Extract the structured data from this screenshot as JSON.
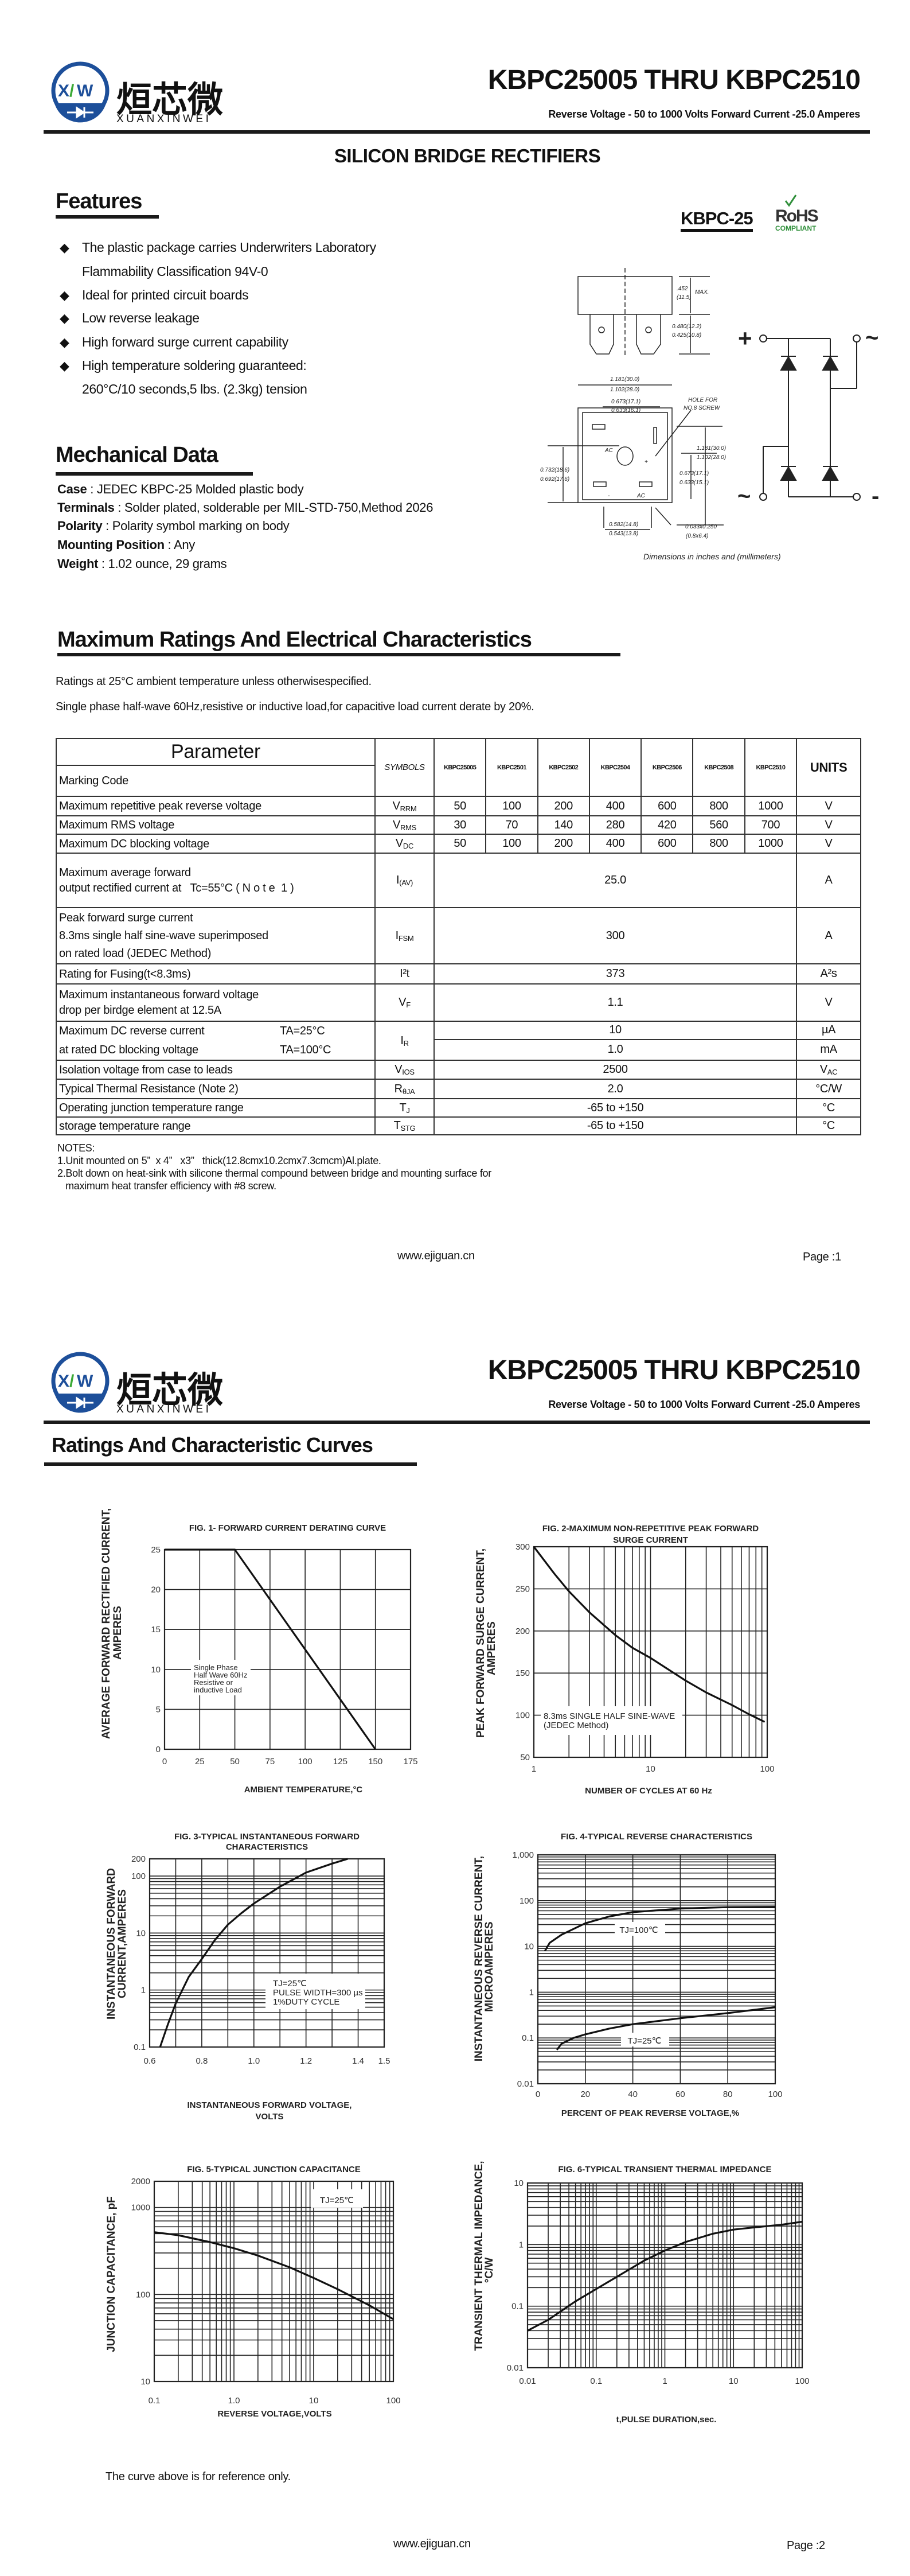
{
  "logo": {
    "mark": "XXW",
    "name_cn": "烜芯微",
    "name_en": "XUANXINWEI",
    "colors": {
      "blue": "#1d4f9a",
      "green": "#3aa935"
    }
  },
  "header": {
    "title": "KBPC25005 THRU KBPC2510",
    "subtitle": "Reverse Voltage - 50 to 1000 Volts Forward Current -25.0 Amperes"
  },
  "page1": {
    "product_type": "SILICON BRIDGE RECTIFIERS",
    "features": {
      "heading": "Features",
      "package_label": "KBPC-25",
      "rohs": {
        "text": "RoHS",
        "sub": "COMPLIANT",
        "color": "#2f8f3a"
      },
      "bullet_icon": "diamond-bullet-icon",
      "items": [
        [
          "The plastic package carries Underwriters Laboratory",
          "Flammability Classification 94V-0"
        ],
        [
          "Ideal for printed circuit boards"
        ],
        [
          "Low reverse leakage"
        ],
        [
          "High forward surge current capability"
        ],
        [
          "High temperature soldering guaranteed:",
          "260°C/10 seconds,5 lbs. (2.3kg) tension"
        ]
      ]
    },
    "package_drawing": {
      "labels": {
        "height_max": ".452",
        "height_max_mm": "(11.5)",
        "max": "MAX.",
        "lead_a": "0.480(12.2)",
        "lead_b": "0.425(10.8)",
        "width_a": "1.181(30.0)",
        "width_b": "1.102(28.0)",
        "inner_a": "0.673(17.1)",
        "inner_b": "0.633(16.1)",
        "hole_1": "HOLE FOR",
        "hole_2": "NO.8 SCREW",
        "side_a": "1.181(30.0)",
        "side_b": "1.102(28.0)",
        "side2_a": "0.673(17.1)",
        "side2_b": "0.633(15.1)",
        "left_a": "0.732(18.6)",
        "left_b": "0.692(17.6)",
        "bottom_a": "0.582(14.8)",
        "bottom_b": "0.543(13.8)",
        "term_a": "0.033x0.250",
        "term_b": "(0.8x6.4)",
        "ac1": "AC",
        "ac2": "AC",
        "plus": "+",
        "minus": "-"
      },
      "caption": "Dimensions in inches and (millimeters)"
    },
    "circuit": {
      "plus": "+",
      "minus": "-",
      "ac": "~"
    },
    "mechanical": {
      "heading": "Mechanical Data",
      "items": [
        {
          "label": "Case",
          "value": " : JEDEC KBPC-25 Molded plastic body"
        },
        {
          "label": "Terminals",
          "value": " : Solder plated, solderable per MIL-STD-750,Method 2026"
        },
        {
          "label": "Polarity",
          "value": " : Polarity symbol  marking on body"
        },
        {
          "label": "Mounting Position",
          "value": " : Any"
        },
        {
          "label": "Weight",
          "value": " : 1.02 ounce, 29 grams"
        }
      ]
    },
    "ratings": {
      "heading": "Maximum Ratings And Electrical Characteristics",
      "note1": "Ratings at 25°C ambient temperature unless otherwisespecified.",
      "note2": "Single phase half-wave 60Hz,resistive or inductive load,for capacitive load current derate by 20%.",
      "table": {
        "param_header": "Parameter",
        "marking_code": "Marking Code",
        "symbols_header": "SYMBOLS",
        "models": [
          "KBPC25005",
          "KBPC2501",
          "KBPC2502",
          "KBPC2504",
          "KBPC2506",
          "KBPC2508",
          "KBPC2510"
        ],
        "units_header": "UNITS",
        "rows": [
          {
            "param": [
              "Maximum repetitive peak reverse voltage"
            ],
            "sym": {
              "m": "V",
              "s": "RRM"
            },
            "values": [
              "50",
              "100",
              "200",
              "400",
              "600",
              "800",
              "1000"
            ],
            "unit": {
              "m": "V",
              "s": ""
            }
          },
          {
            "param": [
              "Maximum RMS voltage"
            ],
            "sym": {
              "m": "V",
              "s": "RMS"
            },
            "values": [
              "30",
              "70",
              "140",
              "280",
              "420",
              "560",
              "700"
            ],
            "unit": {
              "m": "V",
              "s": ""
            }
          },
          {
            "param": [
              "Maximum DC blocking voltage"
            ],
            "sym": {
              "m": "V",
              "s": "DC"
            },
            "values": [
              "50",
              "100",
              "200",
              "400",
              "600",
              "800",
              "1000"
            ],
            "unit": {
              "m": "V",
              "s": ""
            }
          },
          {
            "param": [
              "Maximum average forward",
              "output rectified current at   Tc=55°C ( N o t e  1 )"
            ],
            "sym": {
              "m": "I",
              "s": "(AV)"
            },
            "value": "25.0",
            "unit": {
              "m": "A",
              "s": ""
            }
          },
          {
            "param": [
              "Peak forward surge current",
              "8.3ms single half sine-wave superimposed",
              "on rated load (JEDEC Method)"
            ],
            "sym": {
              "m": "I",
              "s": "FSM"
            },
            "value": "300",
            "unit": {
              "m": "A",
              "s": ""
            }
          },
          {
            "param": [
              "Rating for Fusing(t<8.3ms)"
            ],
            "sym": {
              "m": "I²t",
              "s": ""
            },
            "value": "373",
            "unit": {
              "m": "A²s",
              "s": ""
            }
          },
          {
            "param": [
              "Maximum instantaneous forward voltage",
              "drop per birdge element at 12.5A"
            ],
            "sym": {
              "m": "V",
              "s": "F"
            },
            "value": "1.1",
            "unit": {
              "m": "V",
              "s": ""
            }
          },
          {
            "param": [
              "Maximum DC reverse current",
              "at rated DC blocking voltage"
            ],
            "cond": [
              "TA=25°C",
              "TA=100°C"
            ],
            "sym": {
              "m": "I",
              "s": "R"
            },
            "sub": [
              {
                "value": "10",
                "unit": "µA"
              },
              {
                "value": "1.0",
                "unit": "mA"
              }
            ]
          },
          {
            "param": [
              "Isolation voltage from case to leads"
            ],
            "sym": {
              "m": "V",
              "s": "IOS"
            },
            "value": "2500",
            "unit": {
              "m": "V",
              "s": "AC"
            }
          },
          {
            "param": [
              "Typical Thermal Resistance (Note 2)"
            ],
            "sym": {
              "m": "R",
              "s": "θJA"
            },
            "value": "2.0",
            "unit": {
              "m": "°C/W",
              "s": ""
            }
          },
          {
            "param": [
              "Operating junction temperature range"
            ],
            "sym": {
              "m": "T",
              "s": "J"
            },
            "value": "-65 to +150",
            "unit": {
              "m": "°C",
              "s": ""
            }
          },
          {
            "param": [
              "storage temperature range"
            ],
            "sym": {
              "m": "T",
              "s": "STG"
            },
            "value": "-65 to +150",
            "unit": {
              "m": "°C",
              "s": ""
            }
          }
        ]
      },
      "notes": [
        "NOTES:",
        "1.Unit mounted on 5”  x 4”   x3”   thick(12.8cmx10.2cmx7.3cmcm)Al.plate.",
        "2.Bolt down on heat-sink with silicone thermal compound between bridge and mounting surface for",
        "   maximum heat transfer efficiency with #8 screw."
      ]
    },
    "footer": {
      "url": "www.ejiguan.cn",
      "page": "Page :1"
    }
  },
  "page2": {
    "heading": "Ratings And Characteristic Curves",
    "disclaimer": "The curve above is for reference only.",
    "footer": {
      "url": "www.ejiguan.cn",
      "page": "Page :2"
    }
  },
  "chart_data": [
    {
      "type": "line",
      "title": [
        "FIG. 1- FORWARD CURRENT DERATING CURVE"
      ],
      "xlabel": [
        "AMBIENT TEMPERATURE,°C"
      ],
      "ylabel": [
        "AVERAGE FORWARD RECTIFIED CURRENT,",
        "AMPERES"
      ],
      "xscale": "linear",
      "xlim": [
        0,
        175
      ],
      "yscale": "linear",
      "ylim": [
        0,
        25
      ],
      "grid": true,
      "xticks": [
        "0",
        "25",
        "50",
        "75",
        "100",
        "125",
        "150",
        "175"
      ],
      "yticks": [
        "0",
        "5",
        "10",
        "15",
        "20",
        "25"
      ],
      "annotations": [
        {
          "lines": [
            "Single Phase",
            "Half Wave 60Hz",
            "Resistive or",
            "inductive Load"
          ]
        }
      ],
      "series": [
        {
          "points": [
            [
              0,
              25
            ],
            [
              50,
              25
            ],
            [
              150,
              0
            ]
          ]
        }
      ]
    },
    {
      "type": "line",
      "title": [
        "FIG. 2-MAXIMUM NON-REPETITIVE PEAK FORWARD",
        "SURGE CURRENT"
      ],
      "xlabel": [
        "NUMBER OF CYCLES AT 60 Hz"
      ],
      "ylabel": [
        "PEAK  FORWARD SURGE CURRENT,",
        "AMPERES"
      ],
      "xscale": "log",
      "xlim": [
        1,
        100
      ],
      "yscale": "linear",
      "ylim": [
        50,
        300
      ],
      "grid": true,
      "xticks": [
        "1",
        "10",
        "100"
      ],
      "yticks": [
        "50",
        "100",
        "150",
        "200",
        "250",
        "300"
      ],
      "annotations": [
        {
          "lines": [
            "8.3ms SINGLE HALF SINE-WAVE",
            "(JEDEC Method)"
          ]
        }
      ],
      "series": [
        {
          "points": [
            [
              1,
              300
            ],
            [
              1.5,
              268
            ],
            [
              2,
              247
            ],
            [
              3,
              222
            ],
            [
              5,
              195
            ],
            [
              7,
              180
            ],
            [
              10,
              168
            ],
            [
              20,
              141
            ],
            [
              30,
              127
            ],
            [
              50,
              112
            ],
            [
              70,
              101
            ],
            [
              95,
              92
            ]
          ]
        }
      ]
    },
    {
      "type": "line",
      "title": [
        "FIG. 3-TYPICAL INSTANTANEOUS FORWARD",
        "CHARACTERISTICS"
      ],
      "xlabel": [
        "INSTANTANEOUS FORWARD VOLTAGE,",
        "VOLTS"
      ],
      "ylabel": [
        "INSTANTANEOUS FORWARD",
        "CURRENT,AMPERES"
      ],
      "xscale": "linear",
      "xlim": [
        0.6,
        1.5
      ],
      "yscale": "log",
      "ylim": [
        0.1,
        200
      ],
      "grid": true,
      "xticks": [
        "0.6",
        "0.8",
        "1.0",
        "1.2",
        "1.4",
        "1.5"
      ],
      "yticks": [
        "0.1",
        "1",
        "10",
        "100",
        "200"
      ],
      "annotations": [
        {
          "lines": [
            "TJ=25℃",
            "PULSE WIDTH=300 µs",
            "1%DUTY CYCLE"
          ]
        }
      ],
      "series": [
        {
          "points": [
            [
              0.64,
              0.1
            ],
            [
              0.67,
              0.25
            ],
            [
              0.7,
              0.58
            ],
            [
              0.75,
              1.7
            ],
            [
              0.8,
              3.5
            ],
            [
              0.85,
              7.5
            ],
            [
              0.9,
              14
            ],
            [
              0.95,
              22
            ],
            [
              1.0,
              33
            ],
            [
              1.1,
              65
            ],
            [
              1.2,
              115
            ],
            [
              1.3,
              165
            ],
            [
              1.36,
              200
            ]
          ]
        }
      ]
    },
    {
      "type": "line",
      "title": [
        "FIG. 4-TYPICAL REVERSE CHARACTERISTICS"
      ],
      "xlabel": [
        "PERCENT OF PEAK REVERSE VOLTAGE,%"
      ],
      "ylabel": [
        "INSTANTANEOUS REVERSE CURRENT,",
        "MICROAMPERES"
      ],
      "xscale": "linear",
      "xlim": [
        0,
        100
      ],
      "yscale": "log",
      "ylim": [
        0.01,
        1000
      ],
      "grid": true,
      "xticks": [
        "0",
        "20",
        "40",
        "60",
        "80",
        "100"
      ],
      "yticks": [
        "0.01",
        "0.1",
        "1",
        "10",
        "100",
        "1,000"
      ],
      "series": [
        {
          "name": "TJ=100℃",
          "points": [
            [
              3,
              8
            ],
            [
              5,
              12
            ],
            [
              10,
              18
            ],
            [
              20,
              32
            ],
            [
              30,
              45
            ],
            [
              40,
              56
            ],
            [
              60,
              67
            ],
            [
              80,
              72
            ],
            [
              100,
              73
            ]
          ]
        },
        {
          "name": "TJ=25℃",
          "points": [
            [
              8,
              0.055
            ],
            [
              10,
              0.075
            ],
            [
              15,
              0.1
            ],
            [
              20,
              0.12
            ],
            [
              30,
              0.16
            ],
            [
              40,
              0.2
            ],
            [
              60,
              0.27
            ],
            [
              80,
              0.35
            ],
            [
              100,
              0.47
            ]
          ]
        }
      ]
    },
    {
      "type": "line",
      "title": [
        "FIG. 5-TYPICAL JUNCTION CAPACITANCE"
      ],
      "xlabel": [
        "REVERSE VOLTAGE,VOLTS"
      ],
      "ylabel": [
        "JUNCTION CAPACITANCE, pF"
      ],
      "xscale": "log",
      "xlim": [
        0.1,
        100
      ],
      "yscale": "log",
      "ylim": [
        10,
        2000
      ],
      "grid": true,
      "xticks": [
        "0.1",
        "1.0",
        "10",
        "100"
      ],
      "yticks": [
        "10",
        "100",
        "1000",
        "2000"
      ],
      "annotations": [
        {
          "lines": [
            "TJ=25℃"
          ]
        }
      ],
      "series": [
        {
          "points": [
            [
              0.1,
              520
            ],
            [
              0.2,
              480
            ],
            [
              0.5,
              400
            ],
            [
              1,
              340
            ],
            [
              2,
              280
            ],
            [
              5,
              205
            ],
            [
              10,
              155
            ],
            [
              20,
              115
            ],
            [
              50,
              75
            ],
            [
              100,
              52
            ]
          ]
        }
      ]
    },
    {
      "type": "line",
      "title": [
        "FIG. 6-TYPICAL TRANSIENT THERMAL IMPEDANCE"
      ],
      "xlabel": [
        "t,PULSE DURATION,sec."
      ],
      "ylabel": [
        "TRANSIENT THERMAL IMPEDANCE,",
        "°C/W"
      ],
      "xscale": "log",
      "xlim": [
        0.01,
        100
      ],
      "yscale": "log",
      "ylim": [
        0.01,
        10
      ],
      "grid": true,
      "xticks": [
        "0.01",
        "0.1",
        "1",
        "10",
        "100"
      ],
      "yticks": [
        "0.01",
        "0.1",
        "1",
        "10"
      ],
      "series": [
        {
          "points": [
            [
              0.01,
              0.04
            ],
            [
              0.02,
              0.06
            ],
            [
              0.05,
              0.12
            ],
            [
              0.1,
              0.19
            ],
            [
              0.2,
              0.3
            ],
            [
              0.5,
              0.55
            ],
            [
              1,
              0.8
            ],
            [
              2,
              1.1
            ],
            [
              5,
              1.5
            ],
            [
              10,
              1.75
            ],
            [
              20,
              1.9
            ],
            [
              50,
              2.1
            ],
            [
              100,
              2.35
            ]
          ]
        }
      ]
    }
  ]
}
